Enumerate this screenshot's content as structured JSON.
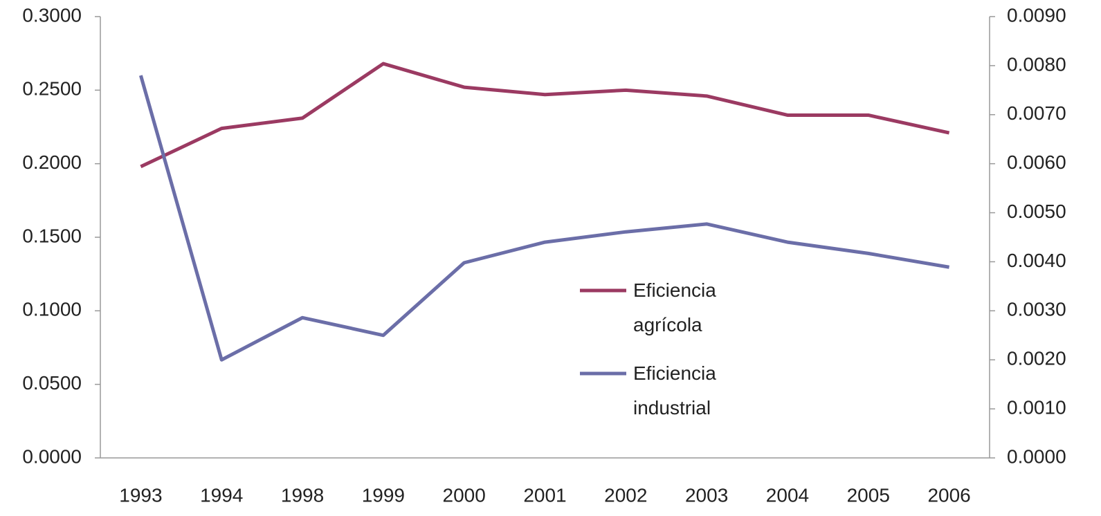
{
  "chart_data": {
    "type": "line",
    "categories": [
      "1993",
      "1994",
      "1998",
      "1999",
      "2000",
      "2001",
      "2002",
      "2003",
      "2004",
      "2005",
      "2006"
    ],
    "series": [
      {
        "name": "Eficiencia agrícola",
        "color": "#9b3a62",
        "values": [
          0.198,
          0.224,
          0.231,
          0.268,
          0.252,
          0.247,
          0.25,
          0.246,
          0.233,
          0.233,
          0.221
        ]
      },
      {
        "name": "Eficiencia industrial",
        "color": "#6b6ea8",
        "axis": "y2",
        "values": [
          0.0078,
          0.002,
          0.00286,
          0.0025,
          0.00398,
          0.0044,
          0.00461,
          0.00477,
          0.0044,
          0.00417,
          0.00389
        ]
      }
    ],
    "ylim": [
      0,
      0.3
    ],
    "yticks": [
      {
        "value": 0,
        "label": "0.0000"
      },
      {
        "value": 0.05,
        "label": "0.0500"
      },
      {
        "value": 0.1,
        "label": "0.1000"
      },
      {
        "value": 0.15,
        "label": "0.1500"
      },
      {
        "value": 0.2,
        "label": "0.2000"
      },
      {
        "value": 0.25,
        "label": "0.2500"
      },
      {
        "value": 0.3,
        "label": "0.3000"
      }
    ],
    "y2lim": [
      0,
      0.009
    ],
    "y2ticks": [
      {
        "value": 0,
        "label": "0.0000"
      },
      {
        "value": 0.001,
        "label": "0.0010"
      },
      {
        "value": 0.002,
        "label": "0.0020"
      },
      {
        "value": 0.003,
        "label": "0.0030"
      },
      {
        "value": 0.004,
        "label": "0.0040"
      },
      {
        "value": 0.005,
        "label": "0.0050"
      },
      {
        "value": 0.006,
        "label": "0.0060"
      },
      {
        "value": 0.007,
        "label": "0.0070"
      },
      {
        "value": 0.008,
        "label": "0.0080"
      },
      {
        "value": 0.009,
        "label": "0.0090"
      }
    ]
  }
}
